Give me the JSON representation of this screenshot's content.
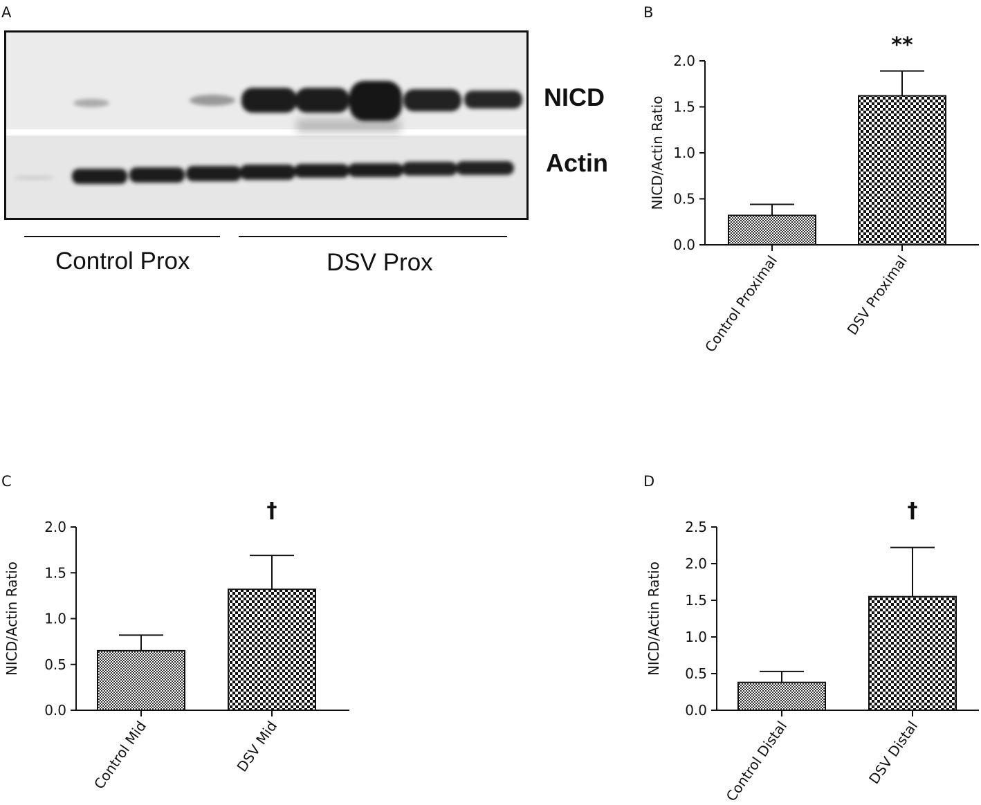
{
  "panels": {
    "A": "A",
    "B": "B",
    "C": "C",
    "D": "D"
  },
  "blot": {
    "bands": [
      "NICD",
      "Actin"
    ],
    "groups": [
      "Control Prox",
      "DSV Prox"
    ]
  },
  "chart_data": [
    {
      "panel": "B",
      "type": "bar",
      "categories": [
        "Control Proximal",
        "DSV Proximal"
      ],
      "values": [
        0.32,
        1.62
      ],
      "error_plus": [
        0.12,
        0.27
      ],
      "patterns": [
        "fine-check",
        "coarse-check"
      ],
      "ylabel": "NICD/Actin Ratio",
      "ylim": [
        0,
        2.0
      ],
      "yticks": [
        "0.0",
        "0.5",
        "1.0",
        "1.5",
        "2.0"
      ],
      "annotations": [
        "**"
      ],
      "grid": false,
      "legend": "none"
    },
    {
      "panel": "C",
      "type": "bar",
      "categories": [
        "Control Mid",
        "DSV Mid"
      ],
      "values": [
        0.65,
        1.32
      ],
      "error_plus": [
        0.17,
        0.37
      ],
      "patterns": [
        "fine-check",
        "coarse-check"
      ],
      "ylabel": "NICD/Actin Ratio",
      "ylim": [
        0,
        2.0
      ],
      "yticks": [
        "0.0",
        "0.5",
        "1.0",
        "1.5",
        "2.0"
      ],
      "annotations": [
        "†"
      ],
      "grid": false,
      "legend": "none"
    },
    {
      "panel": "D",
      "type": "bar",
      "categories": [
        "Control Distal",
        "DSV Distal"
      ],
      "values": [
        0.38,
        1.55
      ],
      "error_plus": [
        0.15,
        0.67
      ],
      "patterns": [
        "fine-check",
        "coarse-check"
      ],
      "ylabel": "NICD/Actin Ratio",
      "ylim": [
        0,
        2.5
      ],
      "yticks": [
        "0.0",
        "0.5",
        "1.0",
        "1.5",
        "2.0",
        "2.5"
      ],
      "annotations": [
        "†"
      ],
      "grid": false,
      "legend": "none"
    }
  ],
  "colors": {
    "ink": "#111111",
    "bar_bg": "#ffffff",
    "blot_bg": "#ececec"
  }
}
